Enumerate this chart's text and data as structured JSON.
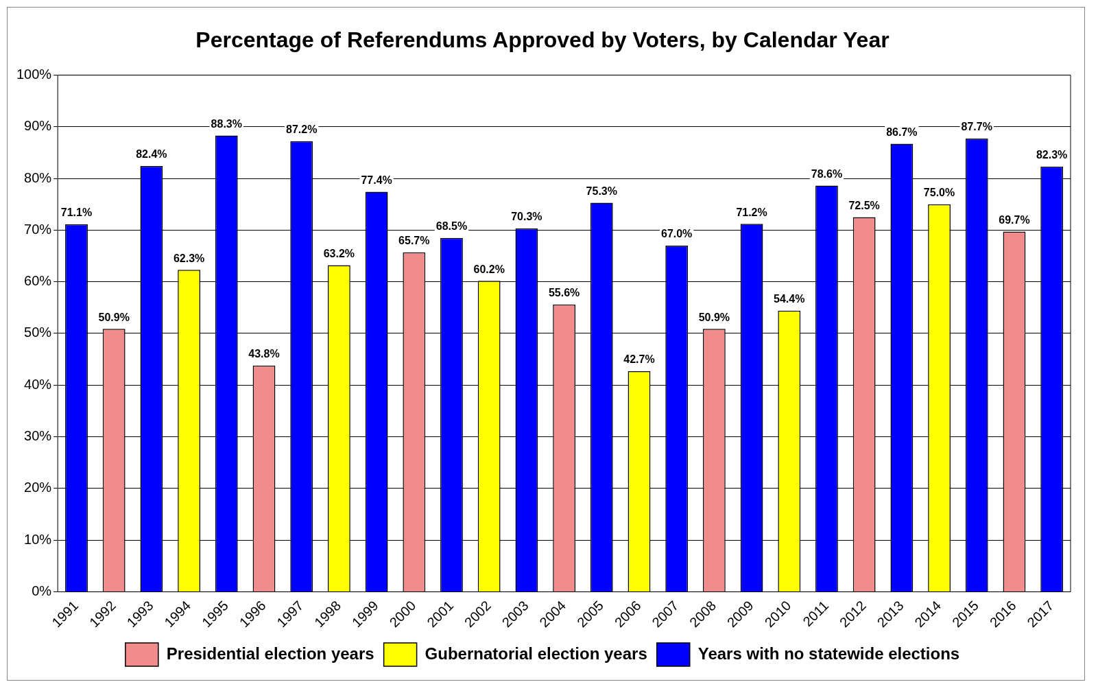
{
  "chart_data": {
    "type": "bar",
    "title": "Percentage of Referendums Approved by Voters, by Calendar Year",
    "categories": [
      "1991",
      "1992",
      "1993",
      "1994",
      "1995",
      "1996",
      "1997",
      "1998",
      "1999",
      "2000",
      "2001",
      "2002",
      "2003",
      "2004",
      "2005",
      "2006",
      "2007",
      "2008",
      "2009",
      "2010",
      "2011",
      "2012",
      "2013",
      "2014",
      "2015",
      "2016",
      "2017"
    ],
    "series": [
      {
        "name": "Presidential election years",
        "color": "#f08c8c",
        "values": [
          null,
          50.9,
          null,
          null,
          null,
          43.8,
          null,
          null,
          null,
          65.7,
          null,
          null,
          null,
          55.6,
          null,
          null,
          null,
          50.9,
          null,
          null,
          null,
          72.5,
          null,
          null,
          null,
          69.7,
          null
        ],
        "value_labels": [
          null,
          "50.9%",
          null,
          null,
          null,
          "43.8%",
          null,
          null,
          null,
          "65.7%",
          null,
          null,
          null,
          "55.6%",
          null,
          null,
          null,
          "50.9%",
          null,
          null,
          null,
          "72.5%",
          null,
          null,
          null,
          "69.7%",
          null
        ]
      },
      {
        "name": "Gubernatorial election years",
        "color": "#ffff00",
        "values": [
          null,
          null,
          null,
          62.3,
          null,
          null,
          null,
          63.2,
          null,
          null,
          null,
          60.2,
          null,
          null,
          null,
          42.7,
          null,
          null,
          null,
          54.4,
          null,
          null,
          null,
          75.0,
          null,
          null,
          null
        ],
        "value_labels": [
          null,
          null,
          null,
          "62.3%",
          null,
          null,
          null,
          "63.2%",
          null,
          null,
          null,
          "60.2%",
          null,
          null,
          null,
          "42.7%",
          null,
          null,
          null,
          "54.4%",
          null,
          null,
          null,
          "75.0%",
          null,
          null,
          null
        ]
      },
      {
        "name": "Years with no statewide elections",
        "color": "#0000ff",
        "values": [
          71.1,
          null,
          82.4,
          null,
          88.3,
          null,
          87.2,
          null,
          77.4,
          null,
          68.5,
          null,
          70.3,
          null,
          75.3,
          null,
          67.0,
          null,
          71.2,
          null,
          78.6,
          null,
          86.7,
          null,
          87.7,
          null,
          82.3
        ],
        "value_labels": [
          "71.1%",
          null,
          "82.4%",
          null,
          "88.3%",
          null,
          "87.2%",
          null,
          "77.4%",
          null,
          "68.5%",
          null,
          "70.3%",
          null,
          "75.3%",
          null,
          "67.0%",
          null,
          "71.2%",
          null,
          "78.6%",
          null,
          "86.7%",
          null,
          "87.7%",
          null,
          "82.3%"
        ]
      }
    ],
    "ylim": [
      0,
      100
    ],
    "yticks": [
      {
        "value": 0,
        "label": "0%"
      },
      {
        "value": 10,
        "label": "10%"
      },
      {
        "value": 20,
        "label": "20%"
      },
      {
        "value": 30,
        "label": "30%"
      },
      {
        "value": 40,
        "label": "40%"
      },
      {
        "value": 50,
        "label": "50%"
      },
      {
        "value": 60,
        "label": "60%"
      },
      {
        "value": 70,
        "label": "70%"
      },
      {
        "value": 80,
        "label": "80%"
      },
      {
        "value": 90,
        "label": "90%"
      },
      {
        "value": 100,
        "label": "100%"
      }
    ],
    "grid": "y",
    "legend": "bottom"
  }
}
